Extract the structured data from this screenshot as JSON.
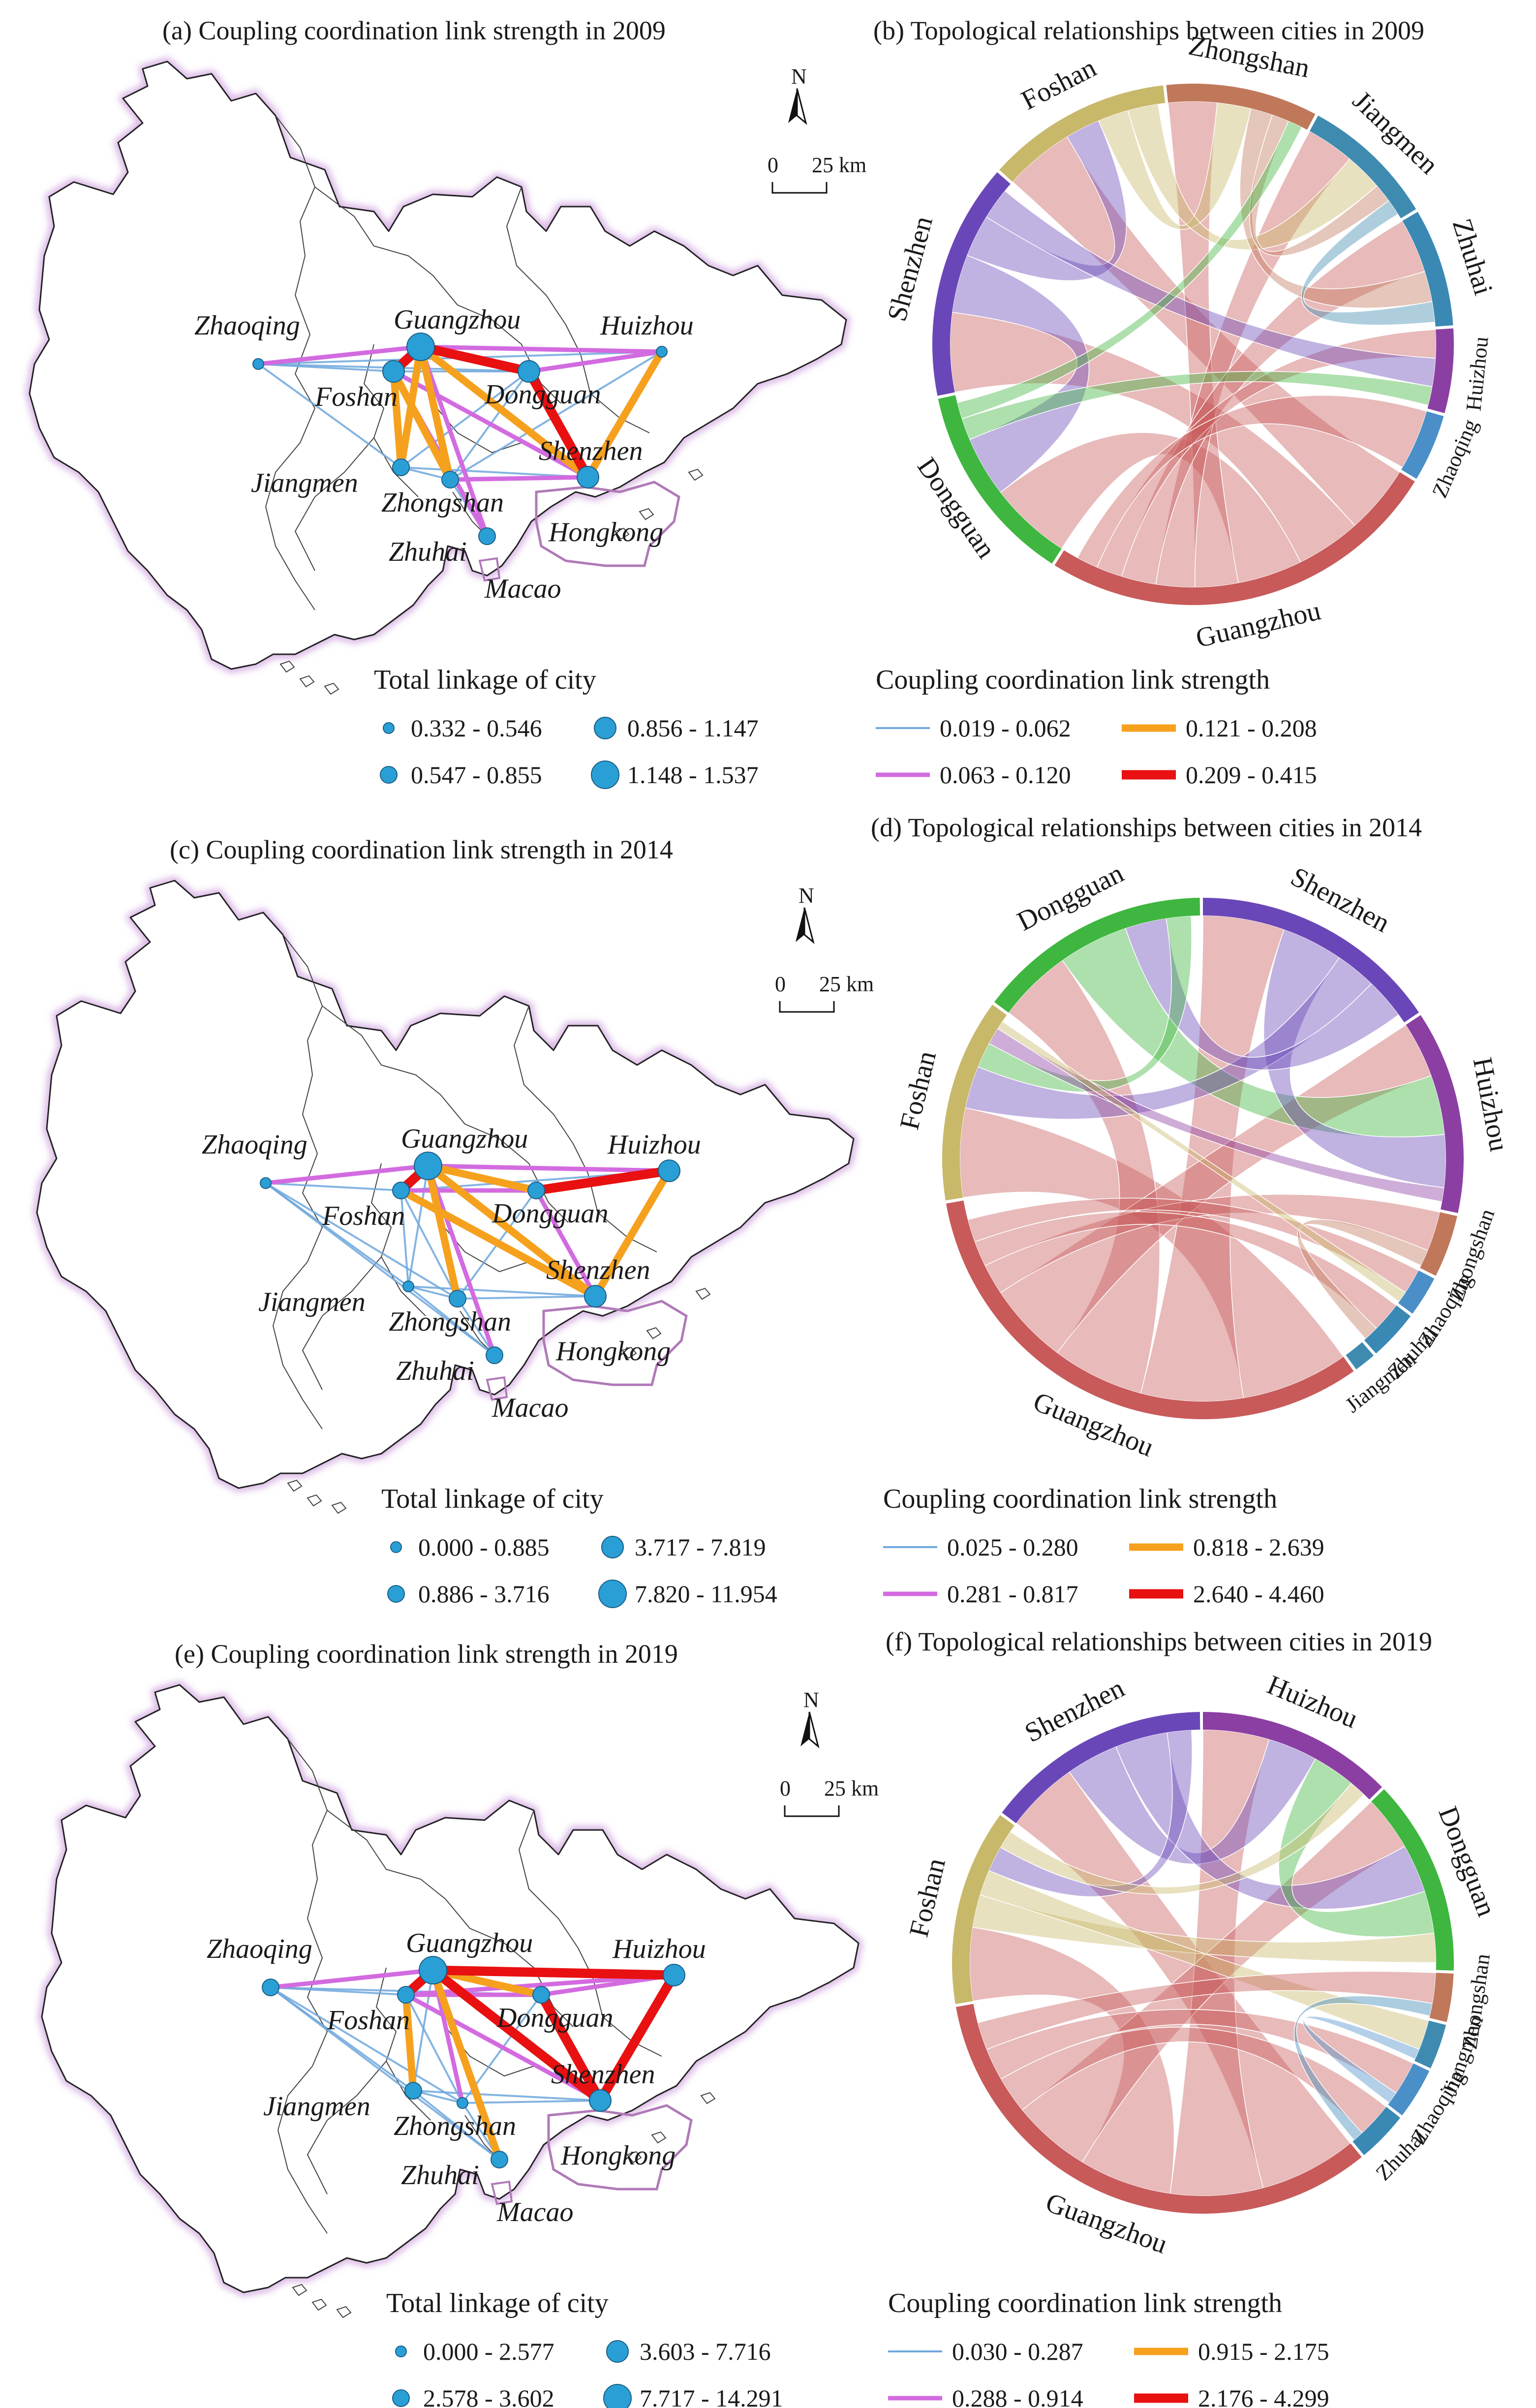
{
  "colors": {
    "weak": "#6fa8dc",
    "medium": "#d36be0",
    "strong": "#f5a11e",
    "strongest": "#e81010",
    "node": "#2a9fd6",
    "Guangzhou": "#c85a5a",
    "Shenzhen": "#6a47b8",
    "Foshan": "#c8b86a",
    "Dongguan": "#3fb63f",
    "Huizhou": "#8b3fa3",
    "Zhongshan": "#c0785a",
    "Jiangmen": "#3f8bb0",
    "Zhuhai": "#3a88b4",
    "Zhaoqing": "#4a8fc8"
  },
  "labels": {
    "map_cities": [
      "Guangzhou",
      "Shenzhen",
      "Foshan",
      "Dongguan",
      "Huizhou",
      "Zhongshan",
      "Jiangmen",
      "Zhuhai",
      "Zhaoqing",
      "Hongkong",
      "Macao"
    ],
    "north": "N",
    "scale_zero": "0",
    "scale_km": "25 km"
  },
  "chart_data": [
    {
      "type": "network-map",
      "panel": "a",
      "title": "(a)  Coupling coordination link strength in 2009",
      "node_legend_title": "Total linkage of city",
      "node_classes": [
        "0.332 - 0.546",
        "0.547 - 0.855",
        "0.856 - 1.147",
        "1.148 - 1.537"
      ],
      "link_legend_title": "Coupling coordination link strength",
      "link_classes": [
        "0.019 - 0.062",
        "0.063 - 0.120",
        "0.121 - 0.208",
        "0.209 - 0.415"
      ],
      "node_class": {
        "Guangzhou": 4,
        "Shenzhen": 3,
        "Foshan": 3,
        "Dongguan": 3,
        "Huizhou": 1,
        "Zhongshan": 2,
        "Jiangmen": 2,
        "Zhuhai": 2,
        "Zhaoqing": 1
      },
      "links": [
        {
          "a": "Guangzhou",
          "b": "Dongguan",
          "c": 4
        },
        {
          "a": "Guangzhou",
          "b": "Foshan",
          "c": 4
        },
        {
          "a": "Dongguan",
          "b": "Shenzhen",
          "c": 4
        },
        {
          "a": "Guangzhou",
          "b": "Shenzhen",
          "c": 3
        },
        {
          "a": "Foshan",
          "b": "Jiangmen",
          "c": 3
        },
        {
          "a": "Guangzhou",
          "b": "Zhongshan",
          "c": 3
        },
        {
          "a": "Foshan",
          "b": "Zhongshan",
          "c": 3
        },
        {
          "a": "Huizhou",
          "b": "Shenzhen",
          "c": 3
        },
        {
          "a": "Guangzhou",
          "b": "Jiangmen",
          "c": 3
        },
        {
          "a": "Guangzhou",
          "b": "Zhaoqing",
          "c": 2
        },
        {
          "a": "Guangzhou",
          "b": "Huizhou",
          "c": 2
        },
        {
          "a": "Foshan",
          "b": "Shenzhen",
          "c": 2
        },
        {
          "a": "Guangzhou",
          "b": "Zhuhai",
          "c": 2
        },
        {
          "a": "Shenzhen",
          "b": "Zhongshan",
          "c": 2
        },
        {
          "a": "Foshan",
          "b": "Zhuhai",
          "c": 2
        },
        {
          "a": "Dongguan",
          "b": "Huizhou",
          "c": 2
        },
        {
          "a": "Zhaoqing",
          "b": "Foshan",
          "c": 1
        },
        {
          "a": "Zhaoqing",
          "b": "Dongguan",
          "c": 1
        },
        {
          "a": "Zhaoqing",
          "b": "Huizhou",
          "c": 1
        },
        {
          "a": "Foshan",
          "b": "Dongguan",
          "c": 1
        },
        {
          "a": "Jiangmen",
          "b": "Zhongshan",
          "c": 1
        },
        {
          "a": "Zhongshan",
          "b": "Zhuhai",
          "c": 1
        },
        {
          "a": "Jiangmen",
          "b": "Shenzhen",
          "c": 1
        },
        {
          "a": "Dongguan",
          "b": "Zhongshan",
          "c": 1
        },
        {
          "a": "Zhaoqing",
          "b": "Jiangmen",
          "c": 1
        },
        {
          "a": "Huizhou",
          "b": "Zhongshan",
          "c": 1
        },
        {
          "a": "Dongguan",
          "b": "Jiangmen",
          "c": 1
        }
      ]
    },
    {
      "type": "chord",
      "panel": "b",
      "title": "(b) Topological relationships between cities in 2009",
      "groups": [
        {
          "name": "Foshan",
          "value": 11
        },
        {
          "name": "Zhongshan",
          "value": 9
        },
        {
          "name": "Jiangmen",
          "value": 8
        },
        {
          "name": "Zhuhai",
          "value": 7
        },
        {
          "name": "Huizhou",
          "value": 5
        },
        {
          "name": "Zhaoqing",
          "value": 4
        },
        {
          "name": "Guangzhou",
          "value": 24
        },
        {
          "name": "Dongguan",
          "value": 12
        },
        {
          "name": "Shenzhen",
          "value": 14
        }
      ],
      "ribbons": [
        {
          "a": "Guangzhou",
          "b": "Foshan",
          "v": 3.2
        },
        {
          "a": "Guangzhou",
          "b": "Shenzhen",
          "v": 3.0
        },
        {
          "a": "Guangzhou",
          "b": "Dongguan",
          "v": 3.0
        },
        {
          "a": "Guangzhou",
          "b": "Zhongshan",
          "v": 2.0
        },
        {
          "a": "Guangzhou",
          "b": "Jiangmen",
          "v": 1.8
        },
        {
          "a": "Guangzhou",
          "b": "Zhuhai",
          "v": 1.6
        },
        {
          "a": "Guangzhou",
          "b": "Huizhou",
          "v": 1.2
        },
        {
          "a": "Guangzhou",
          "b": "Zhaoqing",
          "v": 1.0
        },
        {
          "a": "Shenzhen",
          "b": "Dongguan",
          "v": 2.2
        },
        {
          "a": "Shenzhen",
          "b": "Foshan",
          "v": 1.6
        },
        {
          "a": "Shenzhen",
          "b": "Huizhou",
          "v": 1.2
        },
        {
          "a": "Foshan",
          "b": "Zhongshan",
          "v": 1.4
        },
        {
          "a": "Foshan",
          "b": "Jiangmen",
          "v": 1.4
        },
        {
          "a": "Dongguan",
          "b": "Huizhou",
          "v": 0.8
        },
        {
          "a": "Zhongshan",
          "b": "Zhuhai",
          "v": 0.9
        },
        {
          "a": "Zhongshan",
          "b": "Jiangmen",
          "v": 0.7
        },
        {
          "a": "Dongguan",
          "b": "Zhongshan",
          "v": 0.6
        },
        {
          "a": "Jiangmen",
          "b": "Zhuhai",
          "v": 0.6
        }
      ]
    },
    {
      "type": "network-map",
      "panel": "c",
      "title": "(c) Coupling coordination link strength in 2014",
      "node_legend_title": "Total linkage of city",
      "node_classes": [
        "0.000 - 0.885",
        "0.886 - 3.716",
        "3.717 - 7.819",
        "7.820 - 11.954"
      ],
      "link_legend_title": "Coupling coordination link strength",
      "link_classes": [
        "0.025 - 0.280",
        "0.281 - 0.817",
        "0.818 - 2.639",
        "2.640 - 4.460"
      ],
      "node_class": {
        "Guangzhou": 4,
        "Shenzhen": 3,
        "Foshan": 2,
        "Dongguan": 2,
        "Huizhou": 3,
        "Zhongshan": 2,
        "Jiangmen": 1,
        "Zhuhai": 2,
        "Zhaoqing": 1
      },
      "links": [
        {
          "a": "Guangzhou",
          "b": "Foshan",
          "c": 4
        },
        {
          "a": "Dongguan",
          "b": "Huizhou",
          "c": 4
        },
        {
          "a": "Guangzhou",
          "b": "Shenzhen",
          "c": 3
        },
        {
          "a": "Guangzhou",
          "b": "Dongguan",
          "c": 3
        },
        {
          "a": "Huizhou",
          "b": "Shenzhen",
          "c": 3
        },
        {
          "a": "Guangzhou",
          "b": "Zhongshan",
          "c": 3
        },
        {
          "a": "Foshan",
          "b": "Shenzhen",
          "c": 3
        },
        {
          "a": "Guangzhou",
          "b": "Huizhou",
          "c": 2
        },
        {
          "a": "Guangzhou",
          "b": "Zhaoqing",
          "c": 2
        },
        {
          "a": "Foshan",
          "b": "Dongguan",
          "c": 2
        },
        {
          "a": "Dongguan",
          "b": "Shenzhen",
          "c": 2
        },
        {
          "a": "Guangzhou",
          "b": "Zhuhai",
          "c": 2
        },
        {
          "a": "Foshan",
          "b": "Huizhou",
          "c": 1
        },
        {
          "a": "Zhaoqing",
          "b": "Foshan",
          "c": 1
        },
        {
          "a": "Foshan",
          "b": "Zhongshan",
          "c": 1
        },
        {
          "a": "Jiangmen",
          "b": "Zhongshan",
          "c": 1
        },
        {
          "a": "Zhongshan",
          "b": "Zhuhai",
          "c": 1
        },
        {
          "a": "Jiangmen",
          "b": "Shenzhen",
          "c": 1
        },
        {
          "a": "Zhaoqing",
          "b": "Jiangmen",
          "c": 1
        },
        {
          "a": "Foshan",
          "b": "Jiangmen",
          "c": 1
        },
        {
          "a": "Jiangmen",
          "b": "Zhuhai",
          "c": 1
        },
        {
          "a": "Dongguan",
          "b": "Zhongshan",
          "c": 1
        },
        {
          "a": "Shenzhen",
          "b": "Zhongshan",
          "c": 1
        },
        {
          "a": "Zhaoqing",
          "b": "Zhuhai",
          "c": 1
        },
        {
          "a": "Guangzhou",
          "b": "Jiangmen",
          "c": 1
        },
        {
          "a": "Zhaoqing",
          "b": "Zhongshan",
          "c": 1
        }
      ]
    },
    {
      "type": "chord",
      "panel": "d",
      "title": "(d) Topological relationships between cities in 2014",
      "groups": [
        {
          "name": "Shenzhen",
          "value": 16
        },
        {
          "name": "Huizhou",
          "value": 13
        },
        {
          "name": "Zhongshan",
          "value": 4
        },
        {
          "name": "Zhaoqing",
          "value": 2.6
        },
        {
          "name": "Zhuhai",
          "value": 3.2
        },
        {
          "name": "Jiangmen",
          "value": 1.4
        },
        {
          "name": "Guangzhou",
          "value": 33
        },
        {
          "name": "Foshan",
          "value": 13
        },
        {
          "name": "Dongguan",
          "value": 15
        }
      ],
      "ribbons": [
        {
          "a": "Guangzhou",
          "b": "Foshan",
          "v": 4.2
        },
        {
          "a": "Guangzhou",
          "b": "Shenzhen",
          "v": 4.0
        },
        {
          "a": "Guangzhou",
          "b": "Dongguan",
          "v": 3.6
        },
        {
          "a": "Guangzhou",
          "b": "Huizhou",
          "v": 3.2
        },
        {
          "a": "Dongguan",
          "b": "Huizhou",
          "v": 3.4
        },
        {
          "a": "Shenzhen",
          "b": "Huizhou",
          "v": 3.0
        },
        {
          "a": "Foshan",
          "b": "Shenzhen",
          "v": 2.0
        },
        {
          "a": "Dongguan",
          "b": "Shenzhen",
          "v": 2.0
        },
        {
          "a": "Guangzhou",
          "b": "Zhongshan",
          "v": 1.2
        },
        {
          "a": "Guangzhou",
          "b": "Zhuhai",
          "v": 1.0
        },
        {
          "a": "Foshan",
          "b": "Dongguan",
          "v": 1.2
        },
        {
          "a": "Guangzhou",
          "b": "Zhaoqing",
          "v": 0.9
        },
        {
          "a": "Foshan",
          "b": "Huizhou",
          "v": 0.8
        },
        {
          "a": "Zhongshan",
          "b": "Zhuhai",
          "v": 0.5
        },
        {
          "a": "Foshan",
          "b": "Zhaoqing",
          "v": 0.4
        }
      ]
    },
    {
      "type": "network-map",
      "panel": "e",
      "title": "(e) Coupling coordination link strength in 2019",
      "node_legend_title": "Total linkage of city",
      "node_classes": [
        "0.000 - 2.577",
        "2.578 - 3.602",
        "3.603 - 7.716",
        "7.717 - 14.291"
      ],
      "link_legend_title": "Coupling coordination link strength",
      "link_classes": [
        "0.030 - 0.287",
        "0.288 - 0.914",
        "0.915 - 2.175",
        "2.176 - 4.299"
      ],
      "node_class": {
        "Guangzhou": 4,
        "Shenzhen": 3,
        "Foshan": 2,
        "Dongguan": 2,
        "Huizhou": 3,
        "Zhongshan": 1,
        "Jiangmen": 2,
        "Zhuhai": 2,
        "Zhaoqing": 2
      },
      "links": [
        {
          "a": "Guangzhou",
          "b": "Huizhou",
          "c": 4
        },
        {
          "a": "Guangzhou",
          "b": "Shenzhen",
          "c": 4
        },
        {
          "a": "Huizhou",
          "b": "Shenzhen",
          "c": 4
        },
        {
          "a": "Guangzhou",
          "b": "Foshan",
          "c": 4
        },
        {
          "a": "Dongguan",
          "b": "Shenzhen",
          "c": 4
        },
        {
          "a": "Guangzhou",
          "b": "Dongguan",
          "c": 3
        },
        {
          "a": "Guangzhou",
          "b": "Zhuhai",
          "c": 3
        },
        {
          "a": "Foshan",
          "b": "Jiangmen",
          "c": 3
        },
        {
          "a": "Guangzhou",
          "b": "Zhaoqing",
          "c": 2
        },
        {
          "a": "Foshan",
          "b": "Dongguan",
          "c": 2
        },
        {
          "a": "Foshan",
          "b": "Shenzhen",
          "c": 2
        },
        {
          "a": "Foshan",
          "b": "Huizhou",
          "c": 2
        },
        {
          "a": "Guangzhou",
          "b": "Zhongshan",
          "c": 2
        },
        {
          "a": "Dongguan",
          "b": "Huizhou",
          "c": 2
        },
        {
          "a": "Zhaoqing",
          "b": "Foshan",
          "c": 1
        },
        {
          "a": "Jiangmen",
          "b": "Zhongshan",
          "c": 1
        },
        {
          "a": "Zhongshan",
          "b": "Zhuhai",
          "c": 1
        },
        {
          "a": "Jiangmen",
          "b": "Shenzhen",
          "c": 1
        },
        {
          "a": "Zhaoqing",
          "b": "Jiangmen",
          "c": 1
        },
        {
          "a": "Dongguan",
          "b": "Zhongshan",
          "c": 1
        },
        {
          "a": "Shenzhen",
          "b": "Zhongshan",
          "c": 1
        },
        {
          "a": "Zhaoqing",
          "b": "Zhongshan",
          "c": 1
        },
        {
          "a": "Zhaoqing",
          "b": "Zhuhai",
          "c": 1
        },
        {
          "a": "Jiangmen",
          "b": "Zhuhai",
          "c": 1
        },
        {
          "a": "Guangzhou",
          "b": "Jiangmen",
          "c": 1
        },
        {
          "a": "Foshan",
          "b": "Zhongshan",
          "c": 1
        },
        {
          "a": "Zhaoqing",
          "b": "Dongguan",
          "c": 1
        }
      ]
    },
    {
      "type": "chord",
      "panel": "f",
      "title": "(f) Topological relationships between cities in 2019",
      "groups": [
        {
          "name": "Huizhou",
          "value": 13
        },
        {
          "name": "Dongguan",
          "value": 13
        },
        {
          "name": "Zhongshan",
          "value": 3.2
        },
        {
          "name": "Jiangmen",
          "value": 3.0
        },
        {
          "name": "Zhaoqing",
          "value": 3.4
        },
        {
          "name": "Zhuhai",
          "value": 3.4
        },
        {
          "name": "Guangzhou",
          "value": 34
        },
        {
          "name": "Foshan",
          "value": 13
        },
        {
          "name": "Shenzhen",
          "value": 15
        }
      ],
      "ribbons": [
        {
          "a": "Guangzhou",
          "b": "Shenzhen",
          "v": 4.2
        },
        {
          "a": "Guangzhou",
          "b": "Huizhou",
          "v": 4.0
        },
        {
          "a": "Guangzhou",
          "b": "Foshan",
          "v": 4.0
        },
        {
          "a": "Guangzhou",
          "b": "Dongguan",
          "v": 3.4
        },
        {
          "a": "Shenzhen",
          "b": "Huizhou",
          "v": 3.0
        },
        {
          "a": "Dongguan",
          "b": "Shenzhen",
          "v": 3.0
        },
        {
          "a": "Dongguan",
          "b": "Huizhou",
          "v": 2.6
        },
        {
          "a": "Foshan",
          "b": "Dongguan",
          "v": 1.8
        },
        {
          "a": "Guangzhou",
          "b": "Zhuhai",
          "v": 1.6
        },
        {
          "a": "Foshan",
          "b": "Jiangmen",
          "v": 1.4
        },
        {
          "a": "Guangzhou",
          "b": "Zhaoqing",
          "v": 1.4
        },
        {
          "a": "Foshan",
          "b": "Shenzhen",
          "v": 1.4
        },
        {
          "a": "Guangzhou",
          "b": "Zhongshan",
          "v": 1.2
        },
        {
          "a": "Foshan",
          "b": "Huizhou",
          "v": 1.0
        },
        {
          "a": "Zhongshan",
          "b": "Zhuhai",
          "v": 0.5
        },
        {
          "a": "Jiangmen",
          "b": "Zhaoqing",
          "v": 0.5
        }
      ]
    }
  ]
}
